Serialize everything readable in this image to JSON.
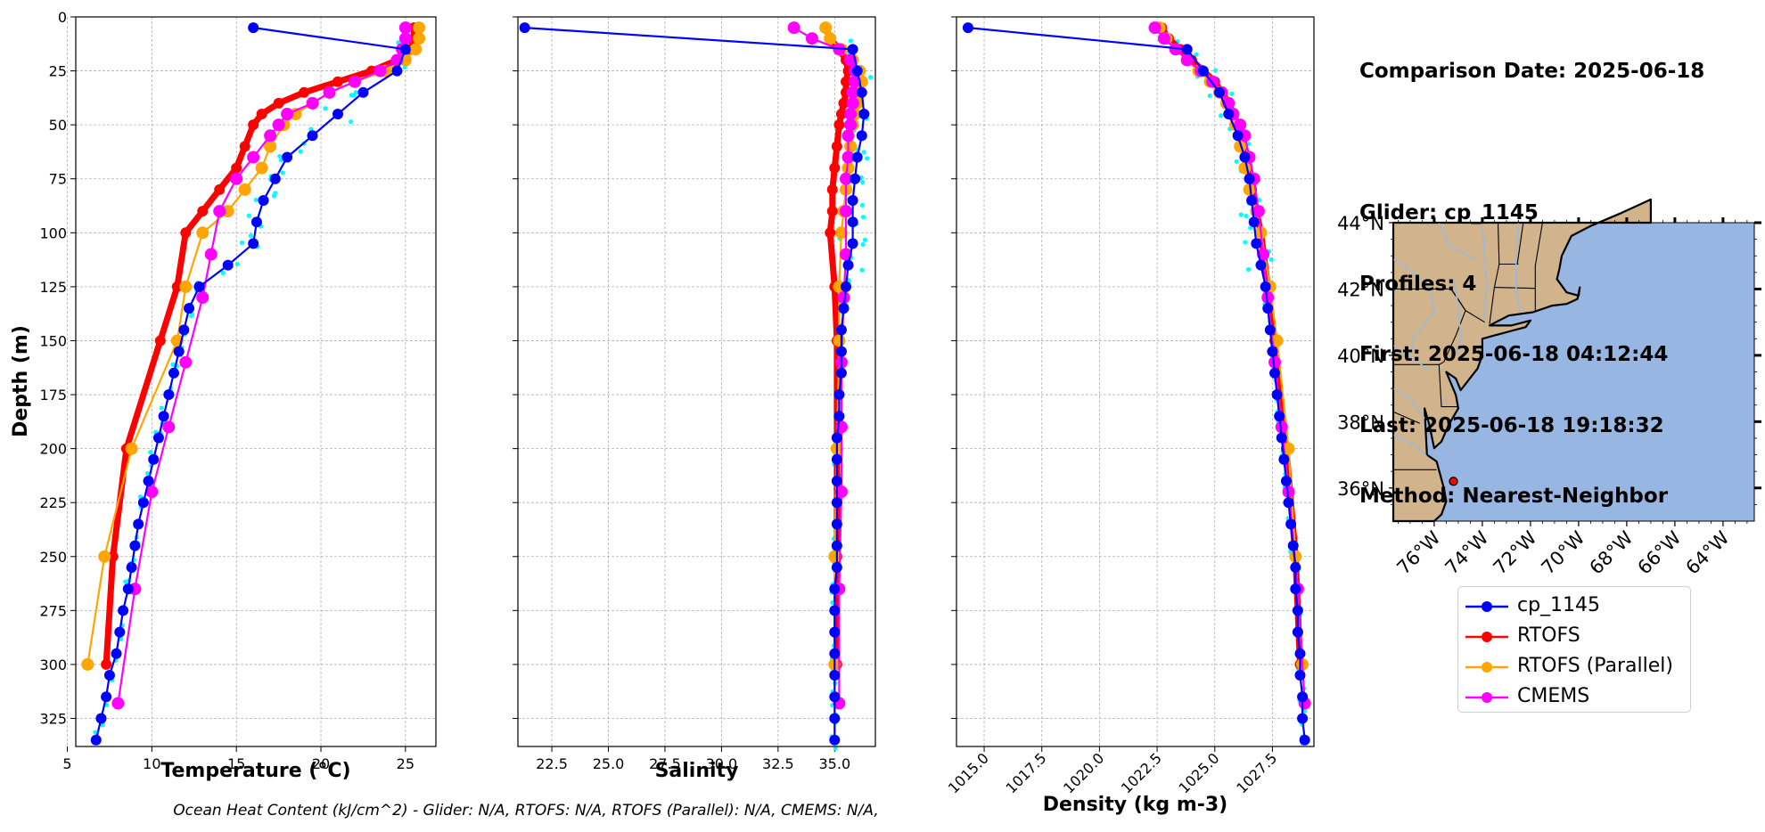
{
  "info": {
    "comparison_date": "Comparison Date: 2025-06-18",
    "glider": "Glider: cp_1145",
    "profiles": "Profiles: 4",
    "first": "First: 2025-06-18 04:12:44",
    "last": "Last: 2025-06-18 19:18:32",
    "method": "Method: Nearest-Neighbor"
  },
  "footer": "Ocean Heat Content (kJ/cm^2) - Glider: N/A,  RTOFS: N/A,  RTOFS (Parallel): N/A,  CMEMS: N/A,",
  "colors": {
    "cp_1145": "#0000ff",
    "RTOFS": "#ff0000",
    "RTOFS (Parallel)": "#ffa500",
    "CMEMS": "#ff00ff",
    "glider_raw": "#00ffff",
    "land": "#d2b48c",
    "ocean": "#97b6e1"
  },
  "legend": [
    "cp_1145",
    "RTOFS",
    "RTOFS (Parallel)",
    "CMEMS"
  ],
  "chart_data": [
    {
      "type": "line",
      "xlabel": "Temperature (°C)",
      "ylabel": "Depth (m)",
      "xlim": [
        5.5,
        26.8
      ],
      "ylim": [
        338,
        0
      ],
      "xticks": [
        "5",
        "10",
        "15",
        "20",
        "25"
      ],
      "yticks": [
        "0",
        "25",
        "50",
        "75",
        "100",
        "125",
        "150",
        "175",
        "200",
        "225",
        "250",
        "275",
        "300",
        "325"
      ],
      "grid": true,
      "depths": [
        5,
        15,
        25,
        35,
        45,
        55,
        65,
        75,
        85,
        95,
        105,
        115,
        125,
        135,
        145,
        155,
        165,
        175,
        185,
        195,
        205,
        215,
        225,
        235,
        245,
        255,
        265,
        275,
        285,
        295,
        305,
        315,
        325,
        335
      ],
      "series": [
        {
          "name": "cp_1145",
          "values": [
            16.0,
            25.0,
            24.5,
            22.5,
            21.0,
            19.5,
            18.0,
            17.3,
            16.6,
            16.2,
            16.0,
            14.5,
            12.8,
            12.2,
            11.9,
            11.6,
            11.3,
            11.0,
            10.7,
            10.4,
            10.1,
            9.8,
            9.5,
            9.2,
            9.0,
            8.8,
            8.6,
            8.3,
            8.1,
            7.9,
            7.5,
            7.3,
            7.0,
            6.7
          ]
        },
        {
          "name": "RTOFS",
          "depths": [
            5,
            10,
            15,
            20,
            25,
            30,
            35,
            40,
            45,
            50,
            60,
            70,
            80,
            90,
            100,
            125,
            150,
            200,
            250,
            300
          ],
          "values": [
            25.5,
            25.5,
            25.3,
            24.5,
            23.0,
            21.0,
            19.0,
            17.5,
            16.5,
            16.0,
            15.5,
            15.0,
            14.0,
            13.0,
            12.0,
            11.5,
            10.5,
            8.5,
            7.7,
            7.3
          ]
        },
        {
          "name": "RTOFS (Parallel)",
          "depths": [
            5,
            10,
            15,
            20,
            25,
            30,
            35,
            40,
            45,
            50,
            60,
            70,
            80,
            90,
            100,
            125,
            150,
            200,
            250,
            300
          ],
          "values": [
            25.8,
            25.8,
            25.6,
            25.0,
            23.8,
            22.0,
            20.5,
            19.5,
            18.5,
            17.8,
            17.0,
            16.5,
            15.5,
            14.5,
            13.0,
            12.0,
            11.5,
            8.8,
            7.2,
            6.2
          ]
        },
        {
          "name": "CMEMS",
          "depths": [
            5,
            10,
            15,
            20,
            25,
            30,
            35,
            40,
            45,
            50,
            55,
            65,
            75,
            90,
            110,
            130,
            160,
            190,
            220,
            265,
            318
          ],
          "values": [
            25.0,
            25.0,
            24.8,
            24.5,
            23.5,
            22.0,
            20.5,
            19.5,
            18.0,
            17.5,
            17.0,
            16.0,
            15.0,
            14.0,
            13.5,
            13.0,
            12.0,
            11.0,
            10.0,
            9.0,
            8.0
          ]
        }
      ]
    },
    {
      "type": "line",
      "xlabel": "Salinity",
      "xlim": [
        21.0,
        36.8
      ],
      "ylim": [
        338,
        0
      ],
      "xticks": [
        "22.5",
        "25.0",
        "27.5",
        "30.0",
        "32.5",
        "35.0"
      ],
      "grid": true,
      "depths": [
        5,
        15,
        25,
        35,
        45,
        55,
        65,
        75,
        85,
        95,
        105,
        115,
        125,
        135,
        145,
        155,
        165,
        175,
        185,
        195,
        205,
        215,
        225,
        235,
        245,
        255,
        265,
        275,
        285,
        295,
        305,
        315,
        325,
        335
      ],
      "series": [
        {
          "name": "cp_1145",
          "values": [
            21.3,
            35.8,
            36.0,
            36.2,
            36.3,
            36.2,
            36.0,
            35.9,
            35.8,
            35.8,
            35.8,
            35.6,
            35.5,
            35.4,
            35.3,
            35.3,
            35.3,
            35.2,
            35.2,
            35.1,
            35.1,
            35.1,
            35.1,
            35.1,
            35.1,
            35.1,
            35.0,
            35.0,
            35.0,
            35.0,
            35.0,
            35.0,
            35.0,
            35.0
          ]
        },
        {
          "name": "RTOFS",
          "depths": [
            5,
            10,
            15,
            20,
            25,
            30,
            35,
            40,
            45,
            50,
            60,
            70,
            80,
            90,
            100,
            125,
            150,
            200,
            250,
            300
          ],
          "values": [
            34.6,
            34.8,
            35.2,
            35.5,
            35.6,
            35.5,
            35.5,
            35.4,
            35.3,
            35.2,
            35.1,
            35.0,
            34.9,
            34.9,
            34.8,
            35.0,
            35.1,
            35.1,
            35.1,
            35.1
          ]
        },
        {
          "name": "RTOFS (Parallel)",
          "depths": [
            5,
            10,
            15,
            20,
            25,
            30,
            35,
            40,
            45,
            50,
            60,
            70,
            80,
            90,
            100,
            125,
            150,
            200,
            250,
            300
          ],
          "values": [
            34.6,
            34.8,
            35.3,
            35.8,
            36.1,
            36.2,
            36.1,
            36.0,
            35.9,
            35.8,
            35.7,
            35.6,
            35.5,
            35.4,
            35.3,
            35.2,
            35.2,
            35.1,
            35.0,
            35.0
          ]
        },
        {
          "name": "CMEMS",
          "depths": [
            5,
            10,
            15,
            20,
            25,
            30,
            35,
            40,
            45,
            50,
            55,
            65,
            75,
            90,
            110,
            130,
            160,
            190,
            220,
            265,
            318
          ],
          "values": [
            33.2,
            34.0,
            35.2,
            35.7,
            35.9,
            35.9,
            35.8,
            35.8,
            35.7,
            35.7,
            35.6,
            35.6,
            35.5,
            35.5,
            35.5,
            35.4,
            35.3,
            35.3,
            35.3,
            35.2,
            35.2
          ]
        }
      ]
    },
    {
      "type": "line",
      "xlabel": "Density (kg m-3)",
      "xlim": [
        1013.8,
        1029.3
      ],
      "ylim": [
        338,
        0
      ],
      "xticks": [
        "1015.0",
        "1017.5",
        "1020.0",
        "1022.5",
        "1025.0",
        "1027.5"
      ],
      "grid": true,
      "depths": [
        5,
        15,
        25,
        35,
        45,
        55,
        65,
        75,
        85,
        95,
        105,
        115,
        125,
        135,
        145,
        155,
        165,
        175,
        185,
        195,
        205,
        215,
        225,
        235,
        245,
        255,
        265,
        275,
        285,
        295,
        305,
        315,
        325,
        335
      ],
      "series": [
        {
          "name": "cp_1145",
          "values": [
            1014.3,
            1023.8,
            1024.5,
            1025.2,
            1025.6,
            1026.0,
            1026.3,
            1026.5,
            1026.6,
            1026.7,
            1026.8,
            1027.0,
            1027.2,
            1027.3,
            1027.4,
            1027.5,
            1027.6,
            1027.7,
            1027.8,
            1027.9,
            1028.0,
            1028.1,
            1028.2,
            1028.3,
            1028.4,
            1028.5,
            1028.5,
            1028.6,
            1028.6,
            1028.7,
            1028.7,
            1028.8,
            1028.8,
            1028.9
          ]
        },
        {
          "name": "RTOFS",
          "depths": [
            5,
            10,
            15,
            20,
            25,
            30,
            35,
            40,
            45,
            50,
            60,
            70,
            80,
            90,
            100,
            125,
            150,
            200,
            250,
            300
          ],
          "values": [
            1022.7,
            1023.0,
            1023.5,
            1024.0,
            1024.5,
            1025.0,
            1025.3,
            1025.6,
            1025.8,
            1026.0,
            1026.2,
            1026.4,
            1026.6,
            1026.8,
            1027.0,
            1027.3,
            1027.6,
            1028.1,
            1028.5,
            1028.7
          ]
        },
        {
          "name": "RTOFS (Parallel)",
          "depths": [
            5,
            10,
            15,
            20,
            25,
            30,
            35,
            40,
            45,
            50,
            60,
            70,
            80,
            90,
            100,
            125,
            150,
            200,
            250,
            300
          ],
          "values": [
            1022.6,
            1022.9,
            1023.3,
            1023.8,
            1024.3,
            1024.8,
            1025.2,
            1025.5,
            1025.7,
            1025.9,
            1026.1,
            1026.3,
            1026.5,
            1026.8,
            1027.0,
            1027.4,
            1027.7,
            1028.2,
            1028.5,
            1028.8
          ]
        },
        {
          "name": "CMEMS",
          "depths": [
            5,
            10,
            15,
            20,
            25,
            30,
            35,
            40,
            45,
            50,
            55,
            65,
            75,
            90,
            110,
            130,
            160,
            190,
            220,
            265,
            318
          ],
          "values": [
            1022.4,
            1022.8,
            1023.3,
            1023.8,
            1024.4,
            1024.9,
            1025.3,
            1025.6,
            1025.8,
            1026.1,
            1026.3,
            1026.5,
            1026.7,
            1026.9,
            1027.1,
            1027.3,
            1027.6,
            1027.9,
            1028.2,
            1028.6,
            1028.9
          ]
        }
      ]
    },
    {
      "type": "map",
      "lat_ticks": [
        "44°N",
        "42°N",
        "40°N",
        "38°N",
        "36°N"
      ],
      "lon_ticks": [
        "76°W",
        "74°W",
        "72°W",
        "70°W",
        "68°W",
        "66°W",
        "64°W"
      ],
      "lon_range": [
        -77.7,
        -62.7
      ],
      "lat_range": [
        35.0,
        44.0
      ],
      "glider_position": {
        "lon": -75.2,
        "lat": 36.2
      }
    }
  ]
}
